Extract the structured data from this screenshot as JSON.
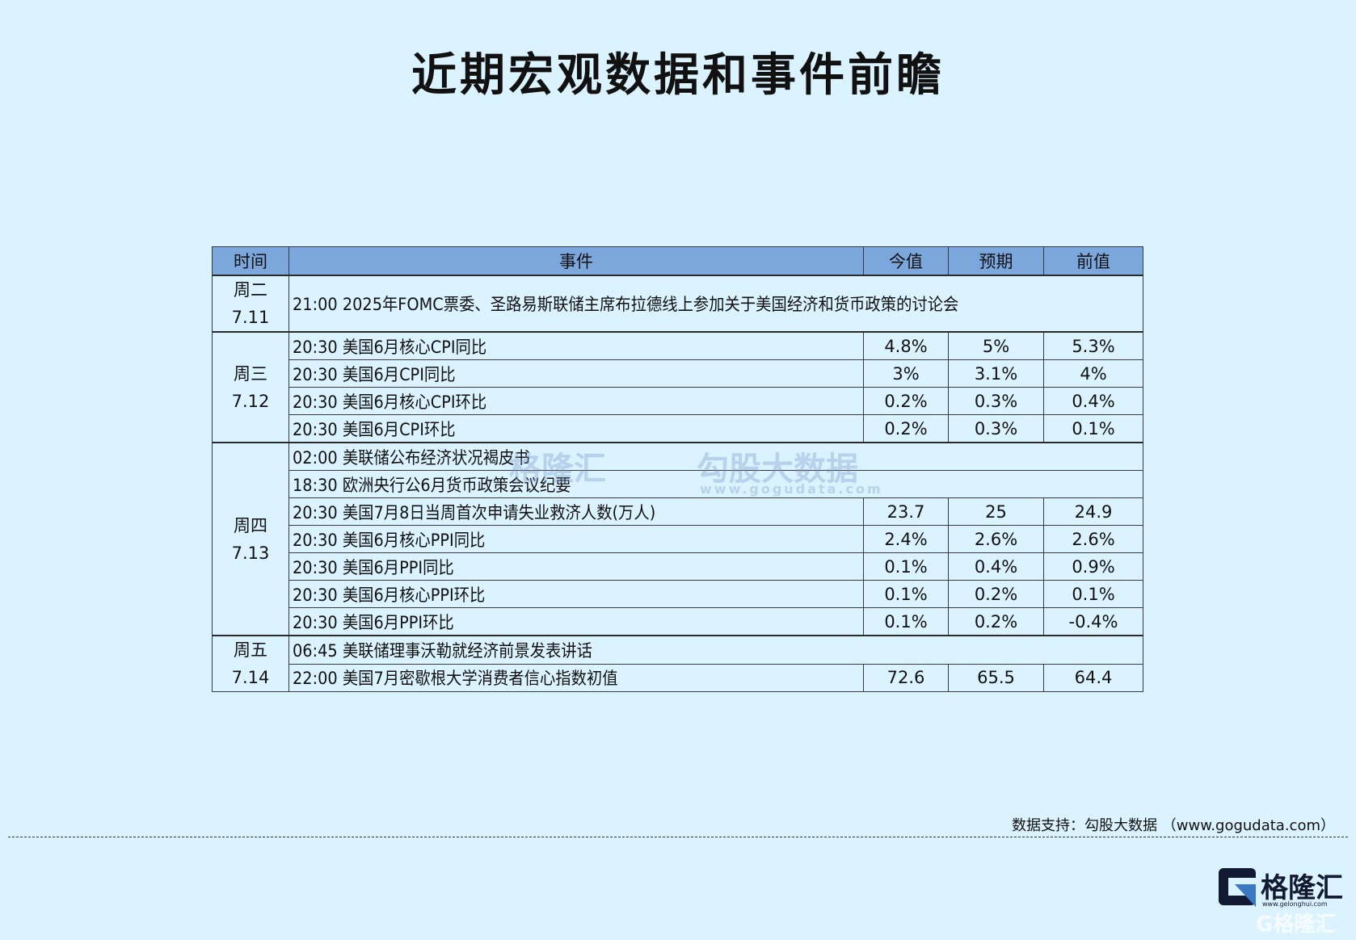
{
  "title": "近期宏观数据和事件前瞻",
  "table": {
    "headers": [
      "时间",
      "事件",
      "今值",
      "预期",
      "前值"
    ],
    "groups": [
      {
        "day": "周二",
        "date": "7.11",
        "rows": [
          {
            "event": "21:00 2025年FOMC票委、圣路易斯联储主席布拉德线上参加关于美国经济和货币政策的讨论会",
            "actual": "",
            "forecast": "",
            "previous": ""
          }
        ]
      },
      {
        "day": "周三",
        "date": "7.12",
        "rows": [
          {
            "event": "20:30 美国6月核心CPI同比",
            "actual": "4.8%",
            "forecast": "5%",
            "previous": "5.3%"
          },
          {
            "event": "20:30 美国6月CPI同比",
            "actual": "3%",
            "forecast": "3.1%",
            "previous": "4%"
          },
          {
            "event": "20:30 美国6月核心CPI环比",
            "actual": "0.2%",
            "forecast": "0.3%",
            "previous": "0.4%"
          },
          {
            "event": "20:30 美国6月CPI环比",
            "actual": "0.2%",
            "forecast": "0.3%",
            "previous": "0.1%"
          }
        ]
      },
      {
        "day": "周四",
        "date": "7.13",
        "rows": [
          {
            "event": "02:00 美联储公布经济状况褐皮书",
            "actual": "",
            "forecast": "",
            "previous": ""
          },
          {
            "event": "18:30 欧洲央行公6月货币政策会议纪要",
            "actual": "",
            "forecast": "",
            "previous": ""
          },
          {
            "event": "20:30 美国7月8日当周首次申请失业救济人数(万人)",
            "actual": "23.7",
            "forecast": "25",
            "previous": "24.9"
          },
          {
            "event": "20:30 美国6月核心PPI同比",
            "actual": "2.4%",
            "forecast": "2.6%",
            "previous": "2.6%"
          },
          {
            "event": "20:30 美国6月PPI同比",
            "actual": "0.1%",
            "forecast": "0.4%",
            "previous": "0.9%"
          },
          {
            "event": "20:30 美国6月核心PPI环比",
            "actual": "0.1%",
            "forecast": "0.2%",
            "previous": "0.1%"
          },
          {
            "event": "20:30 美国6月PPI环比",
            "actual": "0.1%",
            "forecast": "0.2%",
            "previous": "-0.4%"
          }
        ]
      },
      {
        "day": "周五",
        "date": "7.14",
        "rows": [
          {
            "event": "06:45 美联储理事沃勒就经济前景发表讲话",
            "actual": "",
            "forecast": "",
            "previous": ""
          },
          {
            "event": "22:00 美国7月密歇根大学消费者信心指数初值",
            "actual": "72.6",
            "forecast": "65.5",
            "previous": "64.4"
          }
        ]
      }
    ]
  },
  "watermark": {
    "brand": "格隆汇",
    "data_brand": "勾股大数据",
    "data_url": "www.gogudata.com"
  },
  "footer": {
    "source": "数据支持：勾股大数据 （www.gogudata.com）"
  },
  "logo": {
    "name": "格隆汇",
    "url": "www.gelonghui.com"
  },
  "colors": {
    "background": "#dbf3fe",
    "header": "#7ba7dc",
    "logo_dark": "#121a33",
    "logo_blue": "#3a78c4"
  }
}
